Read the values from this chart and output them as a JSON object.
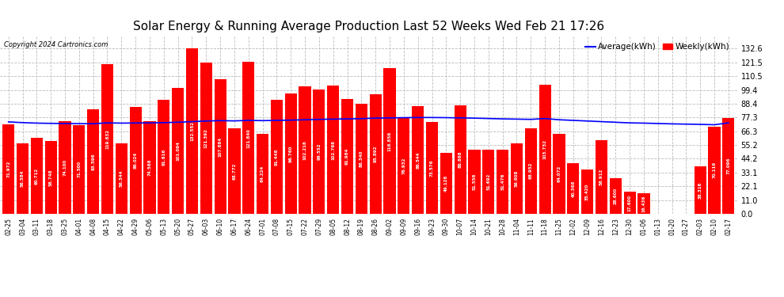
{
  "title": "Solar Energy & Running Average Production Last 52 Weeks Wed Feb 21 17:26",
  "copyright": "Copyright 2024 Cartronics.com",
  "legend_avg": "Average(kWh)",
  "legend_weekly": "Weekly(kWh)",
  "bar_color": "#ff0000",
  "avg_color": "#0000ff",
  "background_color": "#ffffff",
  "grid_color": "#bbbbbb",
  "yticks": [
    0.0,
    11.0,
    22.1,
    33.1,
    44.2,
    55.2,
    66.3,
    77.3,
    88.4,
    99.4,
    110.5,
    121.5,
    132.6
  ],
  "categories": [
    "02-25",
    "03-04",
    "03-11",
    "03-18",
    "03-25",
    "04-01",
    "04-08",
    "04-15",
    "04-22",
    "04-29",
    "05-06",
    "05-13",
    "05-20",
    "05-27",
    "06-03",
    "06-10",
    "06-17",
    "06-24",
    "07-01",
    "07-08",
    "07-15",
    "07-22",
    "07-29",
    "08-05",
    "08-12",
    "08-19",
    "08-26",
    "09-02",
    "09-09",
    "09-16",
    "09-23",
    "09-30",
    "10-07",
    "10-14",
    "10-21",
    "10-28",
    "11-04",
    "11-11",
    "11-18",
    "11-25",
    "12-02",
    "12-09",
    "12-16",
    "12-23",
    "12-30",
    "01-06",
    "01-13",
    "01-20",
    "01-27",
    "02-03",
    "02-10",
    "02-17"
  ],
  "weekly_values": [
    71.972,
    56.584,
    60.712,
    58.748,
    74.1,
    71.5,
    83.596,
    119.832,
    56.344,
    86.024,
    74.568,
    91.616,
    101.064,
    132.552,
    121.392,
    107.884,
    68.772,
    121.84,
    64.224,
    91.448,
    96.76,
    102.216,
    99.552,
    102.768,
    91.984,
    88.34,
    95.892,
    116.856,
    76.932,
    86.544,
    73.576,
    49.128,
    86.868,
    51.556,
    51.692,
    51.476,
    56.608,
    68.952,
    103.732,
    64.072,
    40.368,
    35.42,
    58.912,
    28.6,
    17.6,
    16.436,
    0.0,
    0.0,
    0.148,
    38.316,
    70.116,
    77.096
  ],
  "avg_values": [
    73.8,
    73.2,
    72.8,
    72.6,
    72.5,
    72.4,
    72.3,
    73.0,
    72.8,
    72.9,
    73.0,
    73.2,
    73.5,
    74.0,
    74.5,
    74.8,
    74.6,
    75.0,
    74.8,
    75.0,
    75.2,
    75.5,
    75.8,
    76.0,
    76.2,
    76.4,
    76.8,
    77.0,
    77.2,
    77.3,
    77.3,
    77.2,
    77.0,
    76.8,
    76.5,
    76.2,
    76.0,
    75.8,
    76.5,
    75.5,
    75.0,
    74.5,
    74.0,
    73.5,
    73.0,
    72.8,
    72.5,
    72.2,
    72.0,
    71.8,
    71.5,
    73.0
  ],
  "ymax": 143.0,
  "title_fontsize": 11,
  "tick_fontsize": 7,
  "label_fontsize": 5.5,
  "bar_label_fontsize": 4.0
}
